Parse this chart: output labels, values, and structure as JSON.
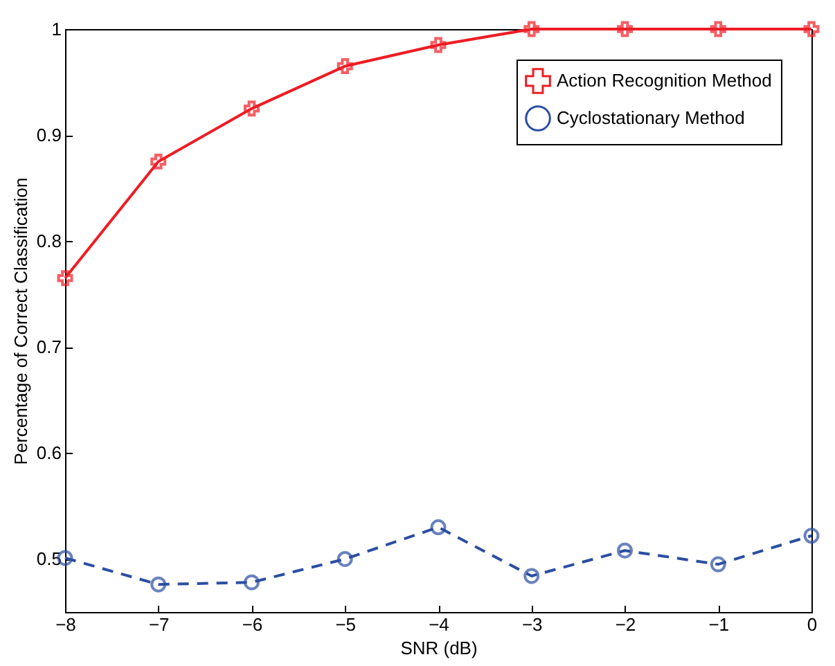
{
  "chart_data": {
    "type": "line",
    "xlabel": "SNR (dB)",
    "ylabel": "Percentage of Correct Classification",
    "x": [
      -8,
      -7,
      -6,
      -5,
      -4,
      -3,
      -2,
      -1,
      0
    ],
    "xlim": [
      -8,
      0
    ],
    "xticks": [
      -8,
      -7,
      -6,
      -5,
      -4,
      -3,
      -2,
      -1,
      0
    ],
    "ylim": [
      0.45,
      1
    ],
    "yticks": [
      0.5,
      0.6,
      0.7,
      0.8,
      0.9,
      1
    ],
    "legend": "top right",
    "grid": false,
    "series": [
      {
        "name": "Action Recognition Method",
        "color": "#ee1c24",
        "marker": "cross",
        "line_style": "solid",
        "values": [
          0.765,
          0.875,
          0.925,
          0.965,
          0.985,
          1,
          1,
          1,
          1
        ]
      },
      {
        "name": "Cyclostationary Method",
        "color": "#2b4ea2",
        "marker": "circle",
        "line_style": "dashed",
        "values": [
          0.501,
          0.476,
          0.478,
          0.5,
          0.53,
          0.484,
          0.508,
          0.495,
          0.522
        ]
      }
    ]
  }
}
